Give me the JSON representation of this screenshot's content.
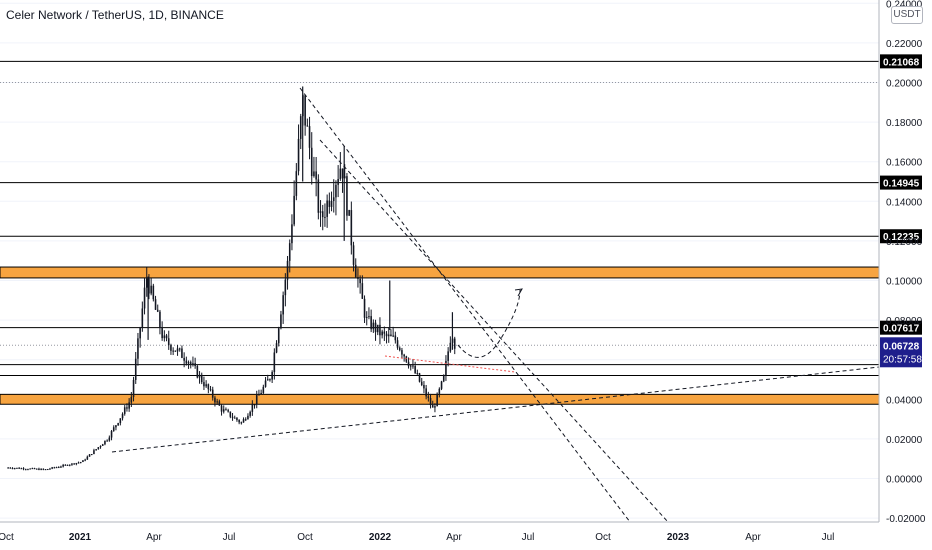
{
  "header": {
    "title": "Celer Network / TetherUS, 1D, BINANCE",
    "currency": "USDT"
  },
  "colors": {
    "up": "#26a69a",
    "down": "#ef5350",
    "candle": "#131722",
    "zone": "#f7a440",
    "price_badge": "#1e1e8c",
    "line_badge": "#000000"
  },
  "chart_data": {
    "type": "candlestick",
    "title": "Celer Network / TetherUS, 1D, BINANCE",
    "ylim": [
      -0.02,
      0.24
    ],
    "y_ticks": [
      "-0.02000",
      "0.00000",
      "0.02000",
      "0.04000",
      "0.06000",
      "0.08000",
      "0.10000",
      "0.12000",
      "0.14000",
      "0.16000",
      "0.18000",
      "0.20000",
      "0.22000",
      "0.24000"
    ],
    "x_ticks": [
      "Oct",
      "2021",
      "Apr",
      "Jul",
      "Oct",
      "2022",
      "Apr",
      "Jul",
      "Oct",
      "2023",
      "Apr",
      "Jul"
    ],
    "x_ticks_bold": [
      "2021",
      "2022",
      "2023"
    ],
    "series": [
      {
        "x": [
          "2020-10-01",
          "2020-11-15",
          "2020-12-31",
          "2021-01-31",
          "2021-03-01",
          "2021-03-20",
          "2021-04-10",
          "2021-05-10",
          "2021-06-20",
          "2021-07-15",
          "2021-08-20",
          "2021-09-10",
          "2021-09-28",
          "2021-10-20",
          "2021-11-15",
          "2021-11-30",
          "2021-12-15",
          "2022-01-05",
          "2022-01-20",
          "2022-02-15",
          "2022-03-07",
          "2022-03-20",
          "2022-03-30",
          "2022-04-05"
        ],
        "values": [
          0.0055,
          0.0045,
          0.0085,
          0.02,
          0.04,
          0.102,
          0.07,
          0.06,
          0.035,
          0.028,
          0.052,
          0.11,
          0.19,
          0.13,
          0.16,
          0.11,
          0.08,
          0.072,
          0.07,
          0.052,
          0.035,
          0.05,
          0.075,
          0.065
        ]
      }
    ],
    "levels": [
      {
        "value": 0.21068,
        "label": "0.21068"
      },
      {
        "value": 0.14945,
        "label": "0.14945"
      },
      {
        "value": 0.12235,
        "label": "0.12235"
      },
      {
        "value": 0.07617,
        "label": "0.07617"
      },
      {
        "value": 0.0575,
        "label": ""
      },
      {
        "value": 0.052,
        "label": ""
      }
    ],
    "zones": [
      {
        "from": 0.1013,
        "to": 0.1068
      },
      {
        "from": 0.0375,
        "to": 0.0425
      }
    ],
    "last_price": {
      "value": 0.06728,
      "label": "0.06728",
      "countdown": "20:57:58"
    }
  }
}
